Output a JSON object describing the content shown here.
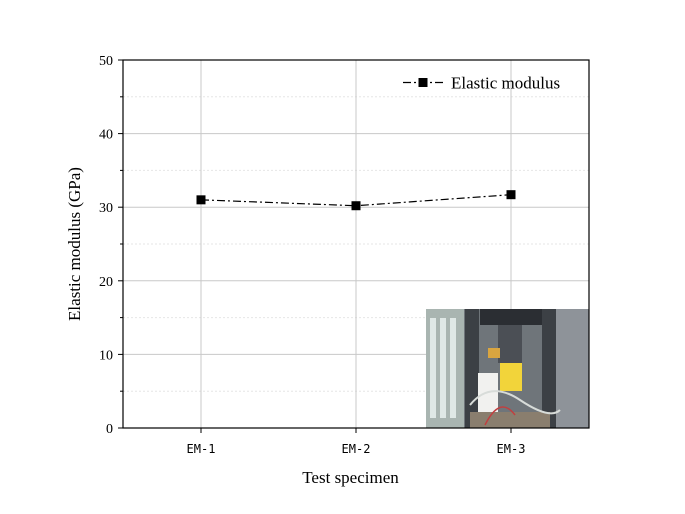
{
  "chart_data": {
    "type": "line",
    "categories": [
      "EM-1",
      "EM-2",
      "EM-3"
    ],
    "series": [
      {
        "name": "Elastic modulus",
        "values": [
          31.0,
          30.2,
          31.7
        ],
        "color": "#000000",
        "line_style": "dash-dot",
        "marker": "square"
      }
    ],
    "title": "",
    "xlabel": "Test specimen",
    "ylabel": "Elastic modulus (GPa)",
    "ylim": [
      0,
      50
    ],
    "yticks": [
      0,
      10,
      20,
      30,
      40,
      50
    ],
    "grid": true,
    "legend_position": "top-right",
    "inset_image": "photo of test specimen in loading machine",
    "colors": {
      "grid_major": "#c8c8c8",
      "grid_minor": "#e6e6e6",
      "axis": "#000000"
    }
  }
}
